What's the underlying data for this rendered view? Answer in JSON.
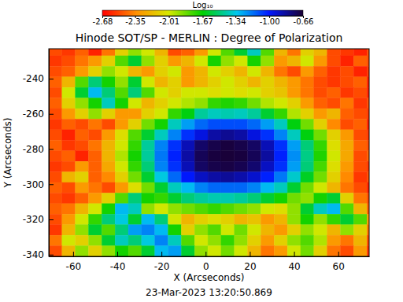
{
  "chart_data": {
    "type": "heatmap",
    "title": "Hinode SOT/SP - MERLIN : Degree of Polarization",
    "x_label": "X (Arcseconds)",
    "y_label": "Y (Arcseconds)",
    "annotation": "23-Mar-2023 13:20:50.869",
    "xlim": [
      -71,
      74
    ],
    "ylim": [
      -341,
      -223
    ],
    "xticks": [
      -60,
      -40,
      -20,
      0,
      20,
      40,
      60
    ],
    "yticks": [
      -240,
      -260,
      -280,
      -300,
      -320,
      -340
    ],
    "x": [
      -68,
      -62,
      -56,
      -50,
      -44,
      -38,
      -32,
      -26,
      -20,
      -14,
      -8,
      -2,
      4,
      10,
      16,
      22,
      28,
      34,
      40,
      46,
      52,
      58,
      64,
      70,
      76
    ],
    "y": [
      -224,
      -230,
      -236,
      -242,
      -248,
      -254,
      -260,
      -266,
      -272,
      -278,
      -284,
      -290,
      -296,
      -302,
      -308,
      -314,
      -320,
      -326,
      -332,
      -338
    ],
    "z": [
      [
        -2.5,
        -2.55,
        -2.45,
        -2.6,
        -2.4,
        -2.1,
        -1.9,
        -2.0,
        -2.2,
        -2.5,
        -2.45,
        -2.3,
        -2.0,
        -1.8,
        -1.6,
        -1.4,
        -1.8,
        -2.2,
        -2.4,
        -2.1,
        -2.2,
        -2.5,
        -2.55,
        -2.6,
        -2.5
      ],
      [
        -2.55,
        -2.5,
        -2.4,
        -2.3,
        -2.1,
        -1.8,
        -1.6,
        -1.9,
        -2.1,
        -2.3,
        -2.2,
        -2.0,
        -1.7,
        -1.9,
        -2.0,
        -1.7,
        -1.9,
        -2.3,
        -2.2,
        -2.0,
        -2.3,
        -2.5,
        -2.6,
        -2.45,
        -2.5
      ],
      [
        -2.5,
        -2.45,
        -2.3,
        -2.1,
        -1.9,
        -2.0,
        -2.2,
        -2.3,
        -2.1,
        -2.0,
        -2.3,
        -2.2,
        -2.0,
        -2.1,
        -2.2,
        -2.0,
        -2.2,
        -2.4,
        -2.5,
        -2.3,
        -2.45,
        -2.55,
        -2.5,
        -2.6,
        -2.55
      ],
      [
        -2.45,
        -2.2,
        -1.8,
        -1.5,
        -1.7,
        -1.9,
        -1.6,
        -2.0,
        -2.2,
        -2.1,
        -2.3,
        -2.2,
        -2.1,
        -2.0,
        -2.1,
        -2.2,
        -2.1,
        -2.2,
        -2.3,
        -2.4,
        -2.5,
        -2.55,
        -2.5,
        -2.45,
        -2.6
      ],
      [
        -2.5,
        -2.0,
        -1.6,
        -1.3,
        -1.5,
        -1.8,
        -1.5,
        -1.8,
        -2.0,
        -2.1,
        -2.0,
        -2.0,
        -2.05,
        -2.0,
        -2.05,
        -2.0,
        -2.1,
        -2.15,
        -2.3,
        -2.4,
        -2.5,
        -2.45,
        -2.55,
        -2.5,
        -2.6
      ],
      [
        -2.45,
        -2.1,
        -1.9,
        -1.7,
        -1.4,
        -1.7,
        -2.0,
        -2.2,
        -2.1,
        -2.0,
        -1.95,
        -1.9,
        -1.75,
        -1.72,
        -1.75,
        -1.85,
        -1.95,
        -2.0,
        -2.1,
        -2.3,
        -2.45,
        -2.5,
        -2.4,
        -2.55,
        -2.5
      ],
      [
        -2.5,
        -2.3,
        -2.1,
        -1.9,
        -2.1,
        -2.3,
        -2.3,
        -2.1,
        -2.0,
        -1.75,
        -1.65,
        -1.45,
        -1.4,
        -1.42,
        -1.4,
        -1.45,
        -1.6,
        -1.75,
        -1.95,
        -2.1,
        -2.3,
        -2.2,
        -2.45,
        -2.5,
        -2.55
      ],
      [
        -2.55,
        -2.45,
        -2.5,
        -2.4,
        -2.5,
        -2.3,
        -2.1,
        -1.85,
        -1.7,
        -1.4,
        -1.25,
        -1.15,
        -1.1,
        -1.1,
        -1.1,
        -1.15,
        -1.25,
        -1.4,
        -1.65,
        -1.85,
        -2.1,
        -2.35,
        -2.5,
        -2.45,
        -2.6
      ],
      [
        -2.5,
        -2.6,
        -2.45,
        -2.5,
        -2.3,
        -2.05,
        -1.8,
        -1.6,
        -1.4,
        -1.2,
        -1.05,
        -0.95,
        -0.85,
        -0.82,
        -0.85,
        -0.95,
        -1.05,
        -1.2,
        -1.4,
        -1.65,
        -1.85,
        -2.1,
        -2.3,
        -2.5,
        -2.55
      ],
      [
        -2.45,
        -2.55,
        -2.5,
        -2.4,
        -2.2,
        -2.0,
        -1.75,
        -1.45,
        -1.2,
        -1.05,
        -0.88,
        -0.75,
        -0.7,
        -0.68,
        -0.7,
        -0.74,
        -0.88,
        -1.05,
        -1.25,
        -1.5,
        -1.75,
        -2.05,
        -2.25,
        -2.45,
        -2.5
      ],
      [
        -2.5,
        -2.45,
        -2.6,
        -2.45,
        -2.2,
        -1.95,
        -1.7,
        -1.45,
        -1.18,
        -1.02,
        -0.85,
        -0.72,
        -0.68,
        -0.67,
        -0.68,
        -0.72,
        -0.84,
        -1.02,
        -1.22,
        -1.48,
        -1.72,
        -2.0,
        -2.25,
        -2.5,
        -2.45
      ],
      [
        -2.55,
        -2.5,
        -2.3,
        -2.45,
        -2.25,
        -2.0,
        -1.75,
        -1.5,
        -1.2,
        -1.05,
        -0.88,
        -0.74,
        -0.7,
        -0.69,
        -0.71,
        -0.76,
        -0.9,
        -1.05,
        -1.25,
        -1.5,
        -1.78,
        -2.05,
        -2.3,
        -2.5,
        -2.55
      ],
      [
        -2.5,
        -2.2,
        -2.1,
        -2.45,
        -2.35,
        -2.1,
        -1.85,
        -1.6,
        -1.35,
        -1.15,
        -1.0,
        -0.9,
        -0.85,
        -0.83,
        -0.86,
        -0.92,
        -1.02,
        -1.18,
        -1.38,
        -1.62,
        -1.85,
        -2.1,
        -2.35,
        -2.55,
        -2.5
      ],
      [
        -2.45,
        -2.5,
        -2.3,
        -2.4,
        -2.5,
        -2.3,
        -2.05,
        -1.85,
        -1.6,
        -1.4,
        -1.3,
        -1.2,
        -1.15,
        -1.15,
        -1.15,
        -1.2,
        -1.3,
        -1.4,
        -1.6,
        -1.85,
        -2.0,
        -2.2,
        -2.4,
        -2.5,
        -2.6
      ],
      [
        -2.5,
        -2.55,
        -2.45,
        -2.3,
        -2.1,
        -1.8,
        -1.5,
        -1.7,
        -1.75,
        -1.6,
        -1.5,
        -1.45,
        -1.42,
        -1.42,
        -1.45,
        -1.5,
        -1.6,
        -1.7,
        -1.85,
        -1.9,
        -1.7,
        -1.6,
        -2.1,
        -2.4,
        -2.5
      ],
      [
        -2.45,
        -2.4,
        -2.2,
        -2.0,
        -1.7,
        -1.3,
        -1.4,
        -1.9,
        -2.0,
        -1.9,
        -1.85,
        -1.8,
        -1.75,
        -1.8,
        -1.85,
        -1.9,
        -2.0,
        -2.05,
        -1.9,
        -1.6,
        -1.4,
        -1.3,
        -1.8,
        -2.2,
        -2.45
      ],
      [
        -2.5,
        -2.3,
        -2.0,
        -1.75,
        -1.5,
        -1.35,
        -1.6,
        -1.3,
        -1.5,
        -2.0,
        -2.2,
        -2.1,
        -2.05,
        -2.1,
        -2.2,
        -2.15,
        -2.3,
        -2.2,
        -1.9,
        -1.7,
        -1.9,
        -1.75,
        -1.6,
        -1.8,
        -2.3
      ],
      [
        -2.55,
        -2.2,
        -1.9,
        -1.6,
        -1.8,
        -1.5,
        -1.25,
        -1.2,
        -1.3,
        -1.7,
        -2.1,
        -1.9,
        -1.8,
        -2.0,
        -1.85,
        -2.0,
        -2.2,
        -2.3,
        -2.1,
        -1.9,
        -2.0,
        -2.2,
        -1.9,
        -2.1,
        -2.4
      ],
      [
        -2.4,
        -2.0,
        -2.1,
        -1.9,
        -1.6,
        -1.4,
        -1.5,
        -1.35,
        -1.2,
        -1.4,
        -1.8,
        -2.0,
        -1.9,
        -1.75,
        -1.9,
        -2.1,
        -2.3,
        -2.1,
        -1.9,
        -1.8,
        -1.95,
        -2.3,
        -2.4,
        -2.2,
        -2.5
      ],
      [
        -2.5,
        -2.2,
        -1.9,
        -2.1,
        -1.9,
        -1.7,
        -1.8,
        -1.6,
        -1.3,
        -1.25,
        -1.6,
        -1.9,
        -2.0,
        -1.85,
        -2.0,
        -2.2,
        -2.4,
        -2.3,
        -2.0,
        -1.85,
        -2.1,
        -2.4,
        -2.5,
        -2.3,
        -2.55
      ]
    ],
    "colorbar": {
      "label": "Log₁₀",
      "range": [
        -2.68,
        -0.66
      ],
      "ticks": [
        -2.68,
        -2.35,
        -2.01,
        -1.67,
        -1.34,
        {
          "value": -1.0,
          "label": "-1.00"
        },
        -0.66
      ]
    }
  }
}
